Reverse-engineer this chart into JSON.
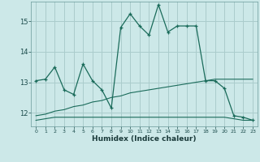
{
  "xlabel": "Humidex (Indice chaleur)",
  "bg_color": "#cce8e8",
  "grid_color": "#aacccc",
  "line_color": "#1a6b5a",
  "xlim": [
    -0.5,
    23.5
  ],
  "ylim": [
    11.55,
    15.65
  ],
  "yticks": [
    12,
    13,
    14,
    15
  ],
  "xticks": [
    0,
    1,
    2,
    3,
    4,
    5,
    6,
    7,
    8,
    9,
    10,
    11,
    12,
    13,
    14,
    15,
    16,
    17,
    18,
    19,
    20,
    21,
    22,
    23
  ],
  "series1_x": [
    0,
    1,
    2,
    3,
    4,
    5,
    6,
    7,
    8,
    9,
    10,
    11,
    12,
    13,
    14,
    15,
    16,
    17,
    18,
    19,
    20,
    21,
    22,
    23
  ],
  "series1_y": [
    13.05,
    13.1,
    13.5,
    12.75,
    12.6,
    13.6,
    13.05,
    12.75,
    12.15,
    14.8,
    15.25,
    14.85,
    14.55,
    15.55,
    14.65,
    14.85,
    14.85,
    14.85,
    13.05,
    13.05,
    12.8,
    11.9,
    11.85,
    11.75
  ],
  "series2_x": [
    0,
    1,
    2,
    3,
    4,
    5,
    6,
    7,
    8,
    9,
    10,
    11,
    12,
    13,
    14,
    15,
    16,
    17,
    18,
    19,
    20,
    21,
    22,
    23
  ],
  "series2_y": [
    11.75,
    11.8,
    11.85,
    11.85,
    11.85,
    11.85,
    11.85,
    11.85,
    11.85,
    11.85,
    11.85,
    11.85,
    11.85,
    11.85,
    11.85,
    11.85,
    11.85,
    11.85,
    11.85,
    11.85,
    11.85,
    11.8,
    11.75,
    11.75
  ],
  "series3_x": [
    0,
    1,
    2,
    3,
    4,
    5,
    6,
    7,
    8,
    9,
    10,
    11,
    12,
    13,
    14,
    15,
    16,
    17,
    18,
    19,
    20,
    21,
    22,
    23
  ],
  "series3_y": [
    11.9,
    11.95,
    12.05,
    12.1,
    12.2,
    12.25,
    12.35,
    12.4,
    12.5,
    12.55,
    12.65,
    12.7,
    12.75,
    12.8,
    12.85,
    12.9,
    12.95,
    13.0,
    13.05,
    13.1,
    13.1,
    13.1,
    13.1,
    13.1
  ]
}
